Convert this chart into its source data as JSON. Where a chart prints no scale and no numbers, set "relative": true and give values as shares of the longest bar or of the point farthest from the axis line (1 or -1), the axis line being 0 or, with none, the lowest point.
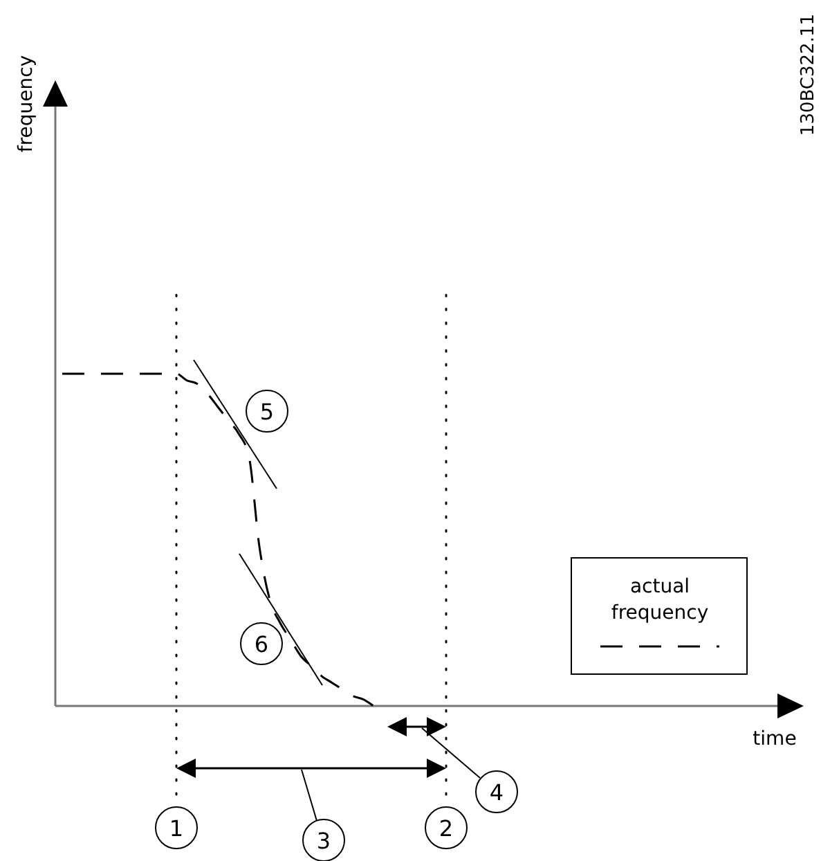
{
  "chart_data": {
    "type": "line",
    "relative": true,
    "xlabel": "time",
    "line_style": "dashed",
    "legend": "right",
    "categories": [
      null,
      null,
      null,
      null,
      null,
      null,
      null,
      null,
      null,
      null,
      null,
      null,
      null,
      null,
      null,
      null,
      null,
      null,
      null,
      null,
      null,
      null,
      null,
      null,
      null,
      null,
      null,
      null,
      null,
      null,
      null,
      null,
      null,
      null,
      null,
      null,
      null,
      null,
      null,
      null,
      null,
      null,
      null,
      null,
      null,
      null,
      null,
      null,
      null,
      null,
      null,
      null,
      null,
      null,
      null,
      null,
      null,
      null,
      null,
      null,
      null,
      null,
      null,
      null,
      null,
      null,
      null,
      null,
      null,
      null,
      null
    ],
    "series": [
      {
        "name": "actual frequency",
        "color": "#000000",
        "values": [
          1,
          1,
          1,
          1,
          1,
          1,
          1,
          1,
          1,
          1,
          1,
          1,
          0.98,
          0.97,
          0.94,
          0.9,
          0.86,
          0.82,
          0.75,
          0.48,
          0.32,
          0.25,
          0.2,
          0.15,
          0.12,
          0.09,
          0.07,
          0.05,
          0.03,
          0.02,
          0,
          null,
          null,
          null,
          null,
          null,
          null,
          null,
          null,
          null,
          null,
          null,
          null,
          null,
          null,
          null,
          null,
          null,
          null,
          null,
          null,
          null,
          null,
          null,
          null,
          null,
          null,
          null,
          null,
          null,
          null,
          null,
          null,
          null,
          null,
          null,
          null,
          null,
          null,
          null,
          null
        ]
      }
    ],
    "annotations": [
      "frequency",
      "1",
      "2",
      "5",
      "6",
      "3",
      "4",
      "130BC322.11"
    ]
  }
}
